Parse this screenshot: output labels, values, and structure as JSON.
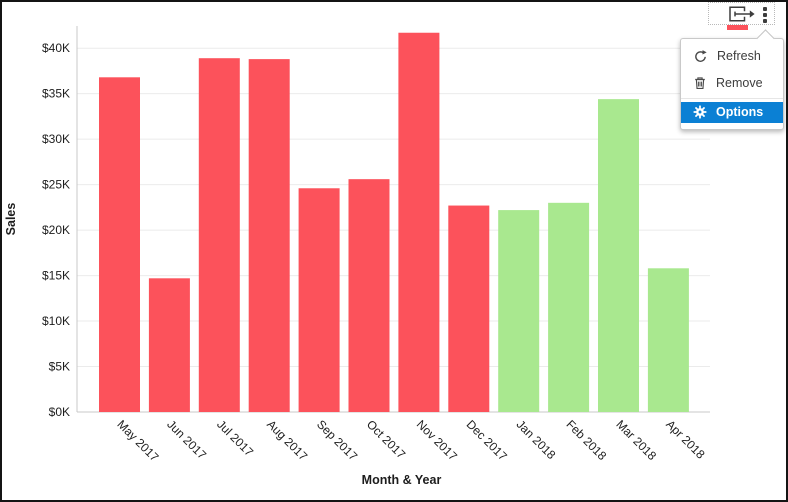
{
  "toolbar": {
    "export_icon": "export-icon",
    "menu_icon": "kebab-menu-icon",
    "active_indicator_color": "#fc525b"
  },
  "menu": {
    "items": [
      {
        "label": "Refresh",
        "icon": "refresh-icon",
        "selected": false
      },
      {
        "label": "Remove",
        "icon": "trash-icon",
        "selected": false
      },
      {
        "label": "Options",
        "icon": "gear-icon",
        "selected": true
      }
    ],
    "selected_bg": "#0b80d4"
  },
  "chart_data": {
    "type": "bar",
    "title": "",
    "xlabel": "Month & Year",
    "ylabel": "Sales",
    "categories": [
      "May 2017",
      "Jun 2017",
      "Jul 2017",
      "Aug 2017",
      "Sep 2017",
      "Oct 2017",
      "Nov 2017",
      "Dec 2017",
      "Jan 2018",
      "Feb 2018",
      "Mar 2018",
      "Apr 2018"
    ],
    "values": [
      36.8,
      14.7,
      38.9,
      38.8,
      24.6,
      25.6,
      41.7,
      22.7,
      22.2,
      23.0,
      34.4,
      15.8
    ],
    "bar_colors": [
      "#fc525b",
      "#fc525b",
      "#fc525b",
      "#fc525b",
      "#fc525b",
      "#fc525b",
      "#fc525b",
      "#fc525b",
      "#a9e88f",
      "#a9e88f",
      "#a9e88f",
      "#a9e88f"
    ],
    "y_tick_labels": [
      "$0K",
      "$5K",
      "$10K",
      "$15K",
      "$20K",
      "$25K",
      "$30K",
      "$35K",
      "$40K"
    ],
    "y_tick_values": [
      0,
      5,
      10,
      15,
      20,
      25,
      30,
      35,
      40
    ],
    "ylim": [
      0,
      42
    ],
    "grid": true,
    "legend_position": "none",
    "colors": {
      "grid": "#ebebeb",
      "axis": "#c8c8c8",
      "text": "#1d1d1d"
    }
  }
}
